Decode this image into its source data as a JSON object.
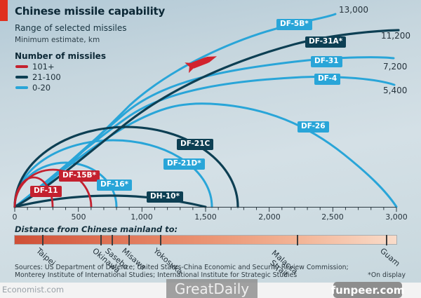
{
  "header": {
    "title": "Chinese missile capability",
    "subtitle": "Range of selected missiles",
    "note": "Minimum estimate, km"
  },
  "legend": {
    "title": "Number of missiles",
    "items": [
      {
        "label": "101+",
        "color": "#c4212f"
      },
      {
        "label": "21-100",
        "color": "#0d3f53"
      },
      {
        "label": "0-20",
        "color": "#29a5d8"
      }
    ]
  },
  "chart_data": {
    "type": "line",
    "title": "Chinese missile capability",
    "subtitle": "Range of selected missiles",
    "unit": "km (minimum estimate)",
    "x_axis": {
      "min": 0,
      "max": 3000,
      "tick_labels": [
        "0",
        "500",
        "1,000",
        "1,500",
        "2,000",
        "2,500",
        "3,000"
      ],
      "minor_tick_interval_km": 100
    },
    "legend_position": "top-left",
    "missiles": [
      {
        "name": "DF-11",
        "range_km": 300,
        "number_of_missiles": "101+",
        "series_color": "#c4212f"
      },
      {
        "name": "DF-15B*",
        "range_km": 600,
        "number_of_missiles": "101+",
        "series_color": "#c4212f"
      },
      {
        "name": "DF-16*",
        "range_km": 800,
        "number_of_missiles": "0-20",
        "series_color": "#29a5d8"
      },
      {
        "name": "DH-10*",
        "range_km": 1500,
        "number_of_missiles": "21-100",
        "series_color": "#0d3f53"
      },
      {
        "name": "DF-21D*",
        "range_km": 1550,
        "number_of_missiles": "0-20",
        "series_color": "#29a5d8"
      },
      {
        "name": "DF-21C",
        "range_km": 1750,
        "number_of_missiles": "21-100",
        "series_color": "#0d3f53"
      },
      {
        "name": "DF-26",
        "range_km": 3000,
        "number_of_missiles": "0-20",
        "series_color": "#29a5d8"
      },
      {
        "name": "DF-4",
        "range_km": 5400,
        "range_label": "5,400",
        "number_of_missiles": "0-20",
        "series_color": "#29a5d8"
      },
      {
        "name": "DF-31",
        "range_km": 7200,
        "range_label": "7,200",
        "number_of_missiles": "0-20",
        "series_color": "#29a5d8"
      },
      {
        "name": "DF-31A*",
        "range_km": 11200,
        "range_label": "11,200",
        "number_of_missiles": "21-100",
        "series_color": "#0d3f53"
      },
      {
        "name": "DF-5B*",
        "range_km": 13000,
        "range_label": "13,000",
        "number_of_missiles": "0-20",
        "series_color": "#29a5d8"
      }
    ]
  },
  "distance_bar": {
    "label": "Distance from Chinese mainland to:",
    "cities": [
      {
        "name": "Taipei"
      },
      {
        "name": "Okinawa"
      },
      {
        "name": "Sasebo"
      },
      {
        "name": "Misawa"
      },
      {
        "name": "Yokosuka"
      },
      {
        "name": "Malacca Strait"
      },
      {
        "name": "Guam"
      }
    ]
  },
  "sources": {
    "line1": "Sources: US Department of Defence; United States-China Economic and Security Review Commission;",
    "line2": "Monterey Institute of International Studies; International Institute for Strategic Studies",
    "footnote": "*On display"
  },
  "footer": {
    "site": "Economist.com",
    "watermark": "GreatDaily",
    "badge": "funpeer.com"
  }
}
